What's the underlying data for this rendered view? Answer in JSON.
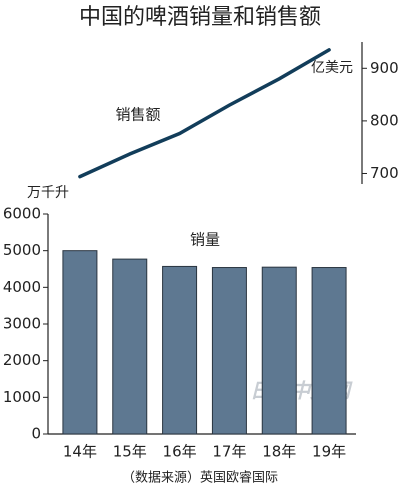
{
  "title": "中国的啤酒销量和销售额",
  "source": "（数据来源）英国欧睿国际",
  "watermark": "日经中文网",
  "chart_data": [
    {
      "type": "line",
      "label": "销售额",
      "unit": "亿美元",
      "values": [
        694,
        737,
        776,
        830,
        880,
        935
      ],
      "color": "#123d5a",
      "ylim": [
        680,
        950
      ],
      "yticks": [
        700,
        800,
        900
      ],
      "y_axis_side": "right"
    },
    {
      "type": "bar",
      "label": "销量",
      "unit": "万千升",
      "categories": [
        "14年",
        "15年",
        "16年",
        "17年",
        "18年",
        "19年"
      ],
      "values": [
        5000,
        4770,
        4570,
        4540,
        4550,
        4540
      ],
      "color": "#5e7891",
      "ylim": [
        0,
        6000
      ],
      "yticks": [
        0,
        1000,
        2000,
        3000,
        4000,
        5000,
        6000
      ],
      "y_axis_side": "left"
    }
  ]
}
